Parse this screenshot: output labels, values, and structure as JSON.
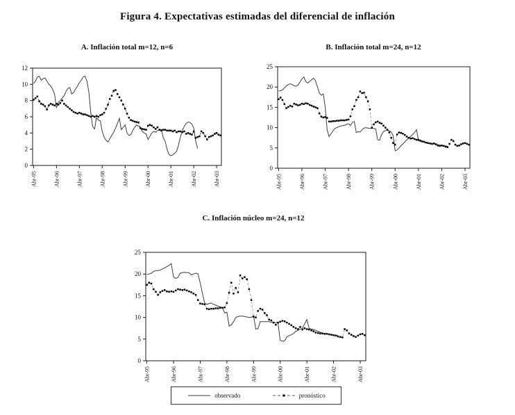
{
  "figure_title": "Figura 4. Expectativas estimadas del diferencial de inflación",
  "legend": {
    "observado": "observado",
    "pronostico": "pronóstico"
  },
  "colors": {
    "axis": "#1a1a1a",
    "observado_line": "#3c3c3c",
    "marker": "#000000",
    "dash_panel_a": "#5a5a5a",
    "dash_panel_bc": "#9a9ac8"
  },
  "x_axis": {
    "tick_labels": [
      "Abr-95",
      "Abr-96",
      "Abr-97",
      "Abr-98",
      "Abr-99",
      "Abr-00",
      "Abr-01",
      "Abr-02",
      "Abr-03"
    ],
    "tick_month_indexes": [
      0,
      12,
      24,
      36,
      48,
      60,
      72,
      84,
      96
    ],
    "months_total": 99
  },
  "chart_data": [
    {
      "type": "line",
      "title": "A. Inflación total  m=12, n=6",
      "ylim": [
        0,
        12
      ],
      "yticks": [
        0,
        2,
        4,
        6,
        8,
        10,
        12
      ],
      "grid": false,
      "dash_color": "#5a5a5a",
      "series": [
        {
          "name": "observado",
          "style": "solid",
          "values": [
            10.1,
            10.4,
            10.9,
            11.0,
            10.5,
            10.7,
            10.8,
            10.4,
            10.0,
            9.8,
            9.4,
            8.8,
            7.1,
            7.8,
            8.0,
            8.3,
            8.6,
            9.1,
            9.5,
            9.6,
            8.8,
            9.0,
            9.4,
            9.8,
            10.2,
            10.5,
            10.9,
            11.0,
            10.4,
            9.0,
            6.5,
            4.8,
            4.5,
            5.9,
            5.6,
            5.5,
            4.2,
            3.5,
            3.1,
            2.9,
            3.3,
            3.7,
            4.1,
            4.6,
            5.2,
            5.8,
            4.4,
            4.7,
            5.0,
            4.0,
            3.7,
            3.8,
            4.3,
            4.7,
            5.0,
            4.85,
            4.7,
            4.2,
            4.0,
            3.9,
            3.2,
            3.6,
            4.0,
            4.2,
            4.1,
            4.3,
            4.35,
            4.45,
            3.4,
            3.0,
            2.0,
            1.35,
            1.2,
            1.3,
            1.5,
            1.75,
            2.5,
            3.5,
            4.3,
            4.8,
            5.2,
            5.35,
            5.3,
            5.1,
            4.6,
            3.0,
            2.1,
            null,
            null,
            null,
            null,
            null,
            null,
            null,
            null,
            null,
            null,
            null,
            null
          ]
        },
        {
          "name": "pronóstico",
          "style": "dashed-markers",
          "values": [
            8.1,
            8.3,
            8.5,
            7.9,
            7.6,
            7.5,
            7.3,
            6.9,
            7.4,
            7.6,
            7.5,
            7.4,
            7.6,
            7.5,
            7.7,
            8.0,
            7.6,
            7.4,
            7.2,
            7.0,
            6.8,
            6.6,
            6.5,
            6.4,
            6.5,
            6.4,
            6.3,
            6.3,
            6.2,
            6.1,
            6.0,
            6.1,
            6.0,
            6.1,
            6.0,
            6.2,
            6.3,
            6.5,
            7.0,
            7.5,
            8.2,
            8.6,
            9.2,
            9.3,
            8.8,
            8.4,
            8.0,
            7.5,
            7.0,
            6.4,
            5.9,
            5.6,
            5.5,
            5.4,
            5.35,
            5.3,
            4.6,
            4.5,
            4.45,
            4.4,
            4.9,
            5.0,
            4.9,
            4.7,
            4.5,
            4.7,
            4.4,
            4.3,
            4.4,
            4.4,
            4.3,
            4.3,
            4.3,
            4.2,
            4.3,
            4.1,
            4.2,
            4.2,
            4.1,
            4.2,
            3.9,
            4.0,
            3.9,
            3.8,
            4.2,
            3.4,
            3.5,
            3.6,
            4.2,
            4.0,
            3.6,
            3.2,
            3.5,
            3.6,
            3.7,
            3.9,
            4.0,
            3.8,
            3.7
          ]
        }
      ]
    },
    {
      "type": "line",
      "title": "B. Inflación total m=24, n=12",
      "ylim": [
        0,
        25
      ],
      "yticks": [
        0,
        5,
        10,
        15,
        20,
        25
      ],
      "grid": false,
      "dash_color": "#9a9ac8",
      "series": [
        {
          "name": "observado",
          "style": "solid",
          "values": [
            19.0,
            19.1,
            19.3,
            19.8,
            20.3,
            20.6,
            20.8,
            20.6,
            20.3,
            20.2,
            20.5,
            21.2,
            22.0,
            22.5,
            21.3,
            21.0,
            21.4,
            21.8,
            22.2,
            21.5,
            20.0,
            18.5,
            18.0,
            18.3,
            15.0,
            9.5,
            7.8,
            8.5,
            9.2,
            9.8,
            10.0,
            10.2,
            10.4,
            10.5,
            10.6,
            10.8,
            11.0,
            10.5,
            11.3,
            11.5,
            8.8,
            9.0,
            8.9,
            9.5,
            9.9,
            10.0,
            9.9,
            9.8,
            9.8,
            9.8,
            9.7,
            7.0,
            6.9,
            8.3,
            9.0,
            9.3,
            9.4,
            9.2,
            8.9,
            8.0,
            4.3,
            4.5,
            5.0,
            5.5,
            6.0,
            6.5,
            7.0,
            7.4,
            7.8,
            8.3,
            8.8,
            9.5,
            6.8,
            6.6,
            6.5,
            6.4,
            6.3,
            6.2,
            6.1,
            6.0,
            6.0,
            5.9,
            5.8,
            5.7,
            5.6,
            5.5,
            5.5,
            5.4,
            null,
            null,
            null,
            null,
            null,
            null,
            null,
            null,
            null,
            null,
            null
          ]
        },
        {
          "name": "pronóstico",
          "style": "dashed-markers",
          "values": [
            17.0,
            17.4,
            16.8,
            15.8,
            14.8,
            15.1,
            15.4,
            15.2,
            15.9,
            15.7,
            15.5,
            15.6,
            15.9,
            15.8,
            16.0,
            15.9,
            15.6,
            15.4,
            15.2,
            15.0,
            14.8,
            13.5,
            12.7,
            12.5,
            12.6,
            12.4,
            11.5,
            11.5,
            11.6,
            11.6,
            11.7,
            11.7,
            11.8,
            11.8,
            11.8,
            11.9,
            12.0,
            12.8,
            14.5,
            15.3,
            16.8,
            17.5,
            18.9,
            18.5,
            18.6,
            17.5,
            16.5,
            14.5,
            10.0,
            10.8,
            11.3,
            11.5,
            11.2,
            11.0,
            10.5,
            10.0,
            9.5,
            8.8,
            7.5,
            6.2,
            5.8,
            8.3,
            8.8,
            8.7,
            8.5,
            8.2,
            7.8,
            7.5,
            7.3,
            7.4,
            7.2,
            7.0,
            7.0,
            6.8,
            6.6,
            6.5,
            6.3,
            6.2,
            6.1,
            6.0,
            6.1,
            5.9,
            5.6,
            5.5,
            5.6,
            5.5,
            5.3,
            5.2,
            6.0,
            7.0,
            6.7,
            5.8,
            5.5,
            5.6,
            5.9,
            6.1,
            6.2,
            6.0,
            5.8
          ]
        }
      ]
    },
    {
      "type": "line",
      "title": "C. Inflación núcleo m=24, n=12",
      "ylim": [
        0,
        25
      ],
      "yticks": [
        0,
        5,
        10,
        15,
        20,
        25
      ],
      "grid": false,
      "dash_color": "#9a9ac8",
      "series": [
        {
          "name": "observado",
          "style": "solid",
          "values": [
            19.9,
            20.0,
            20.2,
            20.6,
            20.8,
            20.8,
            20.9,
            21.2,
            21.4,
            21.7,
            22.0,
            22.4,
            19.3,
            19.0,
            19.2,
            20.2,
            20.3,
            20.4,
            20.3,
            20.3,
            19.8,
            20.0,
            20.2,
            20.1,
            18.0,
            15.5,
            13.3,
            13.0,
            13.2,
            13.3,
            13.0,
            12.8,
            12.6,
            12.4,
            12.3,
            11.0,
            11.2,
            8.0,
            8.3,
            9.0,
            10.0,
            10.2,
            10.3,
            10.3,
            10.2,
            10.1,
            10.0,
            10.0,
            10.4,
            7.3,
            7.4,
            9.0,
            9.0,
            9.0,
            9.0,
            9.0,
            8.9,
            8.8,
            8.8,
            8.7,
            4.7,
            4.5,
            4.6,
            5.5,
            5.8,
            6.0,
            6.3,
            6.8,
            7.0,
            7.3,
            7.5,
            8.5,
            9.5,
            7.5,
            7.3,
            7.2,
            7.0,
            6.8,
            6.6,
            6.4,
            6.3,
            6.2,
            6.1,
            6.0,
            6.0,
            5.9,
            5.8,
            null,
            null,
            null,
            null,
            null,
            null,
            null,
            null,
            null,
            null,
            null,
            null
          ]
        },
        {
          "name": "pronóstico",
          "style": "dashed-markers",
          "values": [
            17.5,
            18.0,
            17.8,
            16.5,
            15.9,
            15.2,
            15.8,
            16.1,
            16.3,
            16.0,
            15.9,
            16.0,
            15.9,
            16.2,
            16.5,
            16.4,
            16.3,
            16.4,
            16.2,
            16.0,
            15.8,
            15.5,
            15.2,
            14.0,
            13.2,
            13.1,
            13.0,
            12.0,
            11.9,
            12.0,
            12.0,
            12.1,
            12.1,
            12.2,
            12.2,
            12.3,
            13.3,
            15.7,
            18.0,
            15.5,
            16.8,
            15.8,
            19.7,
            19.0,
            19.3,
            18.8,
            16.5,
            14.0,
            10.2,
            10.0,
            11.5,
            12.0,
            11.8,
            11.0,
            10.5,
            9.5,
            9.3,
            8.8,
            8.3,
            8.8,
            9.0,
            9.2,
            9.1,
            8.8,
            8.5,
            8.2,
            7.8,
            7.5,
            7.3,
            7.8,
            7.2,
            7.5,
            7.3,
            7.2,
            7.0,
            6.8,
            6.5,
            6.4,
            6.3,
            6.3,
            6.2,
            6.2,
            6.1,
            6.0,
            5.9,
            5.8,
            5.6,
            5.5,
            5.4,
            7.3,
            7.0,
            6.3,
            6.0,
            5.7,
            5.5,
            5.8,
            6.1,
            6.2,
            5.9
          ]
        }
      ]
    }
  ]
}
